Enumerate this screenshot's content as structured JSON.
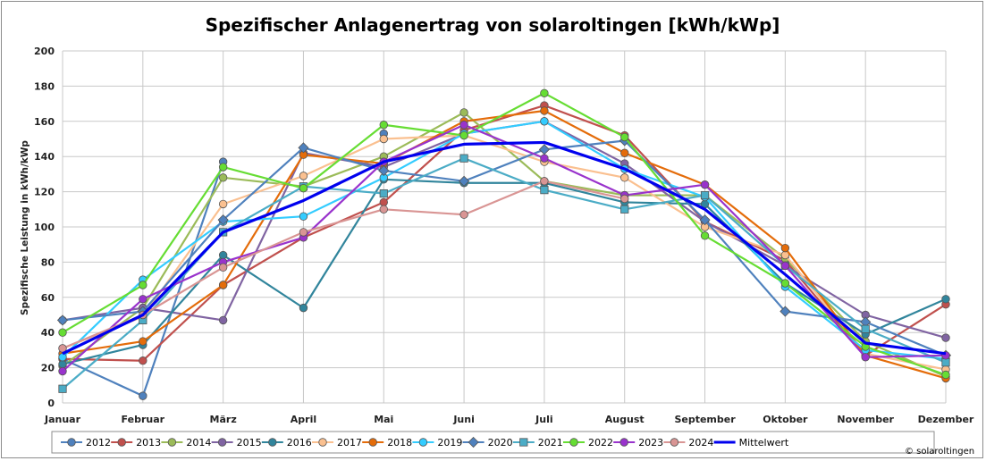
{
  "chart_data": {
    "type": "line",
    "title": "Spezifischer Anlagenertrag von solaroltingen [kWh/kWp]",
    "ylabel": "Spezifische Leistung in kWh/kWp",
    "xlabel": "",
    "ylim": [
      0,
      200
    ],
    "yticks": [
      0,
      20,
      40,
      60,
      80,
      100,
      120,
      140,
      160,
      180,
      200
    ],
    "grid": true,
    "legend_position": "bottom",
    "categories": [
      "Januar",
      "Februar",
      "März",
      "April",
      "Mai",
      "Juni",
      "Juli",
      "August",
      "September",
      "Oktober",
      "November",
      "Dezember"
    ],
    "series": [
      {
        "name": "2012",
        "color": "#4f81bd",
        "marker": "circle",
        "values": [
          25,
          4,
          137,
          null,
          153,
          null,
          null,
          null,
          null,
          null,
          null,
          null
        ]
      },
      {
        "name": "2013",
        "color": "#c0504d",
        "marker": "circle",
        "values": [
          25,
          24,
          67,
          94,
          114,
          155,
          169,
          152,
          103,
          81,
          27,
          56
        ]
      },
      {
        "name": "2014",
        "color": "#9bbb59",
        "marker": "circle",
        "values": [
          21,
          54,
          128,
          123,
          140,
          165,
          126,
          118,
          118,
          82,
          35,
          15
        ]
      },
      {
        "name": "2015",
        "color": "#8064a2",
        "marker": "circle",
        "values": [
          47,
          54,
          47,
          142,
          134,
          153,
          160,
          136,
          103,
          78,
          50,
          37
        ]
      },
      {
        "name": "2016",
        "color": "#31859c",
        "marker": "circle",
        "values": [
          22,
          33,
          84,
          54,
          127,
          125,
          125,
          114,
          113,
          68,
          39,
          59
        ]
      },
      {
        "name": "2017",
        "color": "#fac090",
        "marker": "circle",
        "values": [
          31,
          49,
          113,
          129,
          150,
          152,
          137,
          128,
          100,
          84,
          28,
          19
        ]
      },
      {
        "name": "2018",
        "color": "#e46c0a",
        "marker": "circle",
        "values": [
          28,
          35,
          67,
          141,
          136,
          160,
          166,
          142,
          124,
          88,
          27,
          14
        ]
      },
      {
        "name": "2019",
        "color": "#33ccff",
        "marker": "circle",
        "values": [
          26,
          70,
          103,
          106,
          128,
          153,
          160,
          133,
          117,
          66,
          30,
          25
        ]
      },
      {
        "name": "2020",
        "color": "#4f81bd",
        "marker": "diamond",
        "values": [
          47,
          52,
          104,
          145,
          132,
          126,
          144,
          149,
          104,
          52,
          46,
          27
        ]
      },
      {
        "name": "2021",
        "color": "#4bacc6",
        "marker": "square",
        "values": [
          8,
          47,
          97,
          123,
          119,
          139,
          121,
          110,
          118,
          78,
          42,
          23
        ]
      },
      {
        "name": "2022",
        "color": "#66dd33",
        "marker": "circle",
        "values": [
          40,
          67,
          134,
          122,
          158,
          152,
          176,
          151,
          95,
          68,
          32,
          16
        ]
      },
      {
        "name": "2023",
        "color": "#9933cc",
        "marker": "circle",
        "values": [
          18,
          59,
          80,
          94,
          137,
          158,
          139,
          118,
          124,
          78,
          26,
          27
        ]
      },
      {
        "name": "2024",
        "color": "#d99594",
        "marker": "circle",
        "values": [
          31,
          50,
          77,
          97,
          110,
          107,
          126,
          116,
          null,
          null,
          null,
          null
        ]
      },
      {
        "name": "Mittelwert",
        "color": "#0000ee",
        "marker": "none",
        "values": [
          28,
          50,
          97,
          115,
          137,
          147,
          148,
          133,
          110,
          73,
          34,
          28
        ]
      }
    ],
    "copyright": "© solaroltingen"
  }
}
